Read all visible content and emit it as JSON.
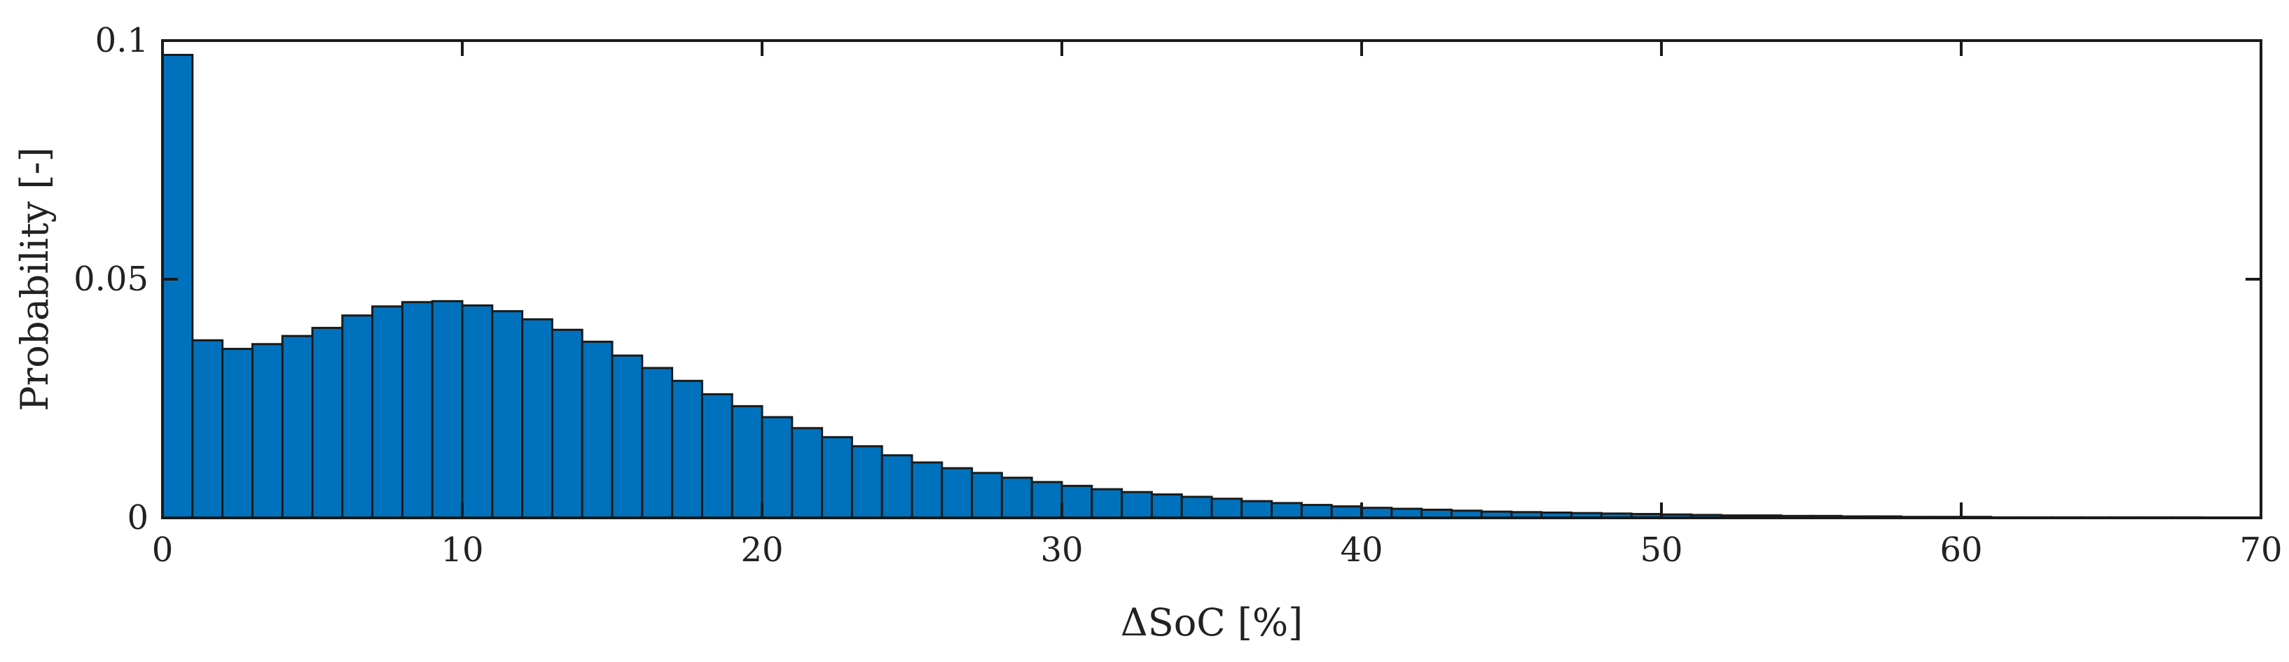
{
  "chart_data": {
    "type": "bar",
    "xlabel": "ΔSoC [%]",
    "ylabel": "Probability [-]",
    "xlim": [
      0,
      70
    ],
    "ylim": [
      0,
      0.1
    ],
    "xticks": [
      "0",
      "10",
      "20",
      "30",
      "40",
      "50",
      "60",
      "70"
    ],
    "yticks": [
      "0",
      "0.05",
      "0.1"
    ],
    "grid": false,
    "legend": "none",
    "bin_width": 1,
    "bin_start": 0,
    "values": [
      0.097,
      0.0372,
      0.0354,
      0.0364,
      0.0381,
      0.0398,
      0.0424,
      0.0443,
      0.0452,
      0.0454,
      0.0445,
      0.0433,
      0.0416,
      0.0394,
      0.0369,
      0.034,
      0.0314,
      0.0287,
      0.0259,
      0.0234,
      0.0211,
      0.0188,
      0.0169,
      0.015,
      0.0131,
      0.0116,
      0.0104,
      0.0094,
      0.0084,
      0.0075,
      0.0067,
      0.006,
      0.0054,
      0.0049,
      0.0044,
      0.004,
      0.0035,
      0.0031,
      0.0027,
      0.0024,
      0.0021,
      0.0019,
      0.0017,
      0.0015,
      0.0013,
      0.0012,
      0.0011,
      0.001,
      0.0009,
      0.0008,
      0.0007,
      0.0006,
      0.0005,
      0.0005,
      0.0004,
      0.0004,
      0.0003,
      0.0003,
      0.0002,
      0.0002,
      0.0002,
      0.0001,
      0.0001,
      0.0001,
      0.0001,
      0.0001,
      0.0001,
      0.0001,
      0.0,
      0.0
    ],
    "bar_color": "#0072BD",
    "edge_color": "#1a1a1a"
  }
}
